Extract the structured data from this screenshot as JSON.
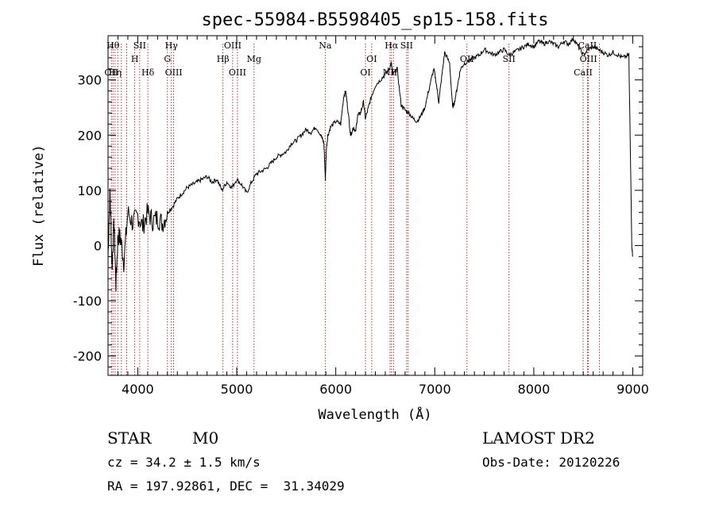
{
  "chart_data": {
    "type": "line",
    "title": "spec-55984-B5598405_sp15-158.fits",
    "xlabel": "Wavelength (Å)",
    "ylabel": "Flux (relative)",
    "xlim": [
      3700,
      9100
    ],
    "ylim": [
      -235,
      380
    ],
    "xticks": [
      4000,
      5000,
      6000,
      7000,
      8000,
      9000
    ],
    "yticks": [
      -200,
      -100,
      0,
      100,
      200,
      300
    ],
    "grid": false,
    "series": [
      {
        "x": [
          3700,
          3720,
          3740,
          3760,
          3780,
          3800,
          3830,
          3860,
          3900,
          3950,
          4000,
          4050,
          4100,
          4150,
          4200,
          4250,
          4300,
          4350,
          4400,
          4450,
          4500,
          4550,
          4600,
          4650,
          4700,
          4750,
          4800,
          4850,
          4900,
          4950,
          5000,
          5050,
          5100,
          5150,
          5200,
          5250,
          5300,
          5350,
          5400,
          5450,
          5500,
          5550,
          5600,
          5650,
          5700,
          5750,
          5800,
          5850,
          5880,
          5895,
          5905,
          5920,
          5950,
          6000,
          6050,
          6080,
          6100,
          6120,
          6150,
          6180,
          6200,
          6220,
          6250,
          6280,
          6300,
          6330,
          6360,
          6400,
          6450,
          6500,
          6540,
          6560,
          6580,
          6620,
          6660,
          6700,
          6740,
          6780,
          6820,
          6860,
          6900,
          6950,
          6990,
          7010,
          7040,
          7070,
          7100,
          7150,
          7180,
          7200,
          7230,
          7260,
          7300,
          7350,
          7400,
          7450,
          7500,
          7550,
          7600,
          7650,
          7700,
          7750,
          7800,
          7850,
          7900,
          7950,
          8000,
          8050,
          8100,
          8150,
          8200,
          8250,
          8300,
          8350,
          8400,
          8450,
          8500,
          8550,
          8600,
          8650,
          8700,
          8750,
          8800,
          8850,
          8900,
          8960,
          8990,
          9000
        ],
        "y": [
          -20,
          100,
          -40,
          40,
          -70,
          20,
          10,
          -30,
          60,
          40,
          55,
          35,
          60,
          45,
          50,
          40,
          60,
          70,
          85,
          95,
          105,
          110,
          115,
          120,
          125,
          115,
          120,
          100,
          115,
          105,
          120,
          110,
          95,
          115,
          130,
          135,
          140,
          150,
          160,
          165,
          170,
          185,
          190,
          200,
          210,
          205,
          215,
          200,
          185,
          120,
          175,
          200,
          215,
          225,
          220,
          270,
          280,
          250,
          200,
          215,
          205,
          235,
          240,
          260,
          230,
          250,
          270,
          290,
          300,
          310,
          320,
          330,
          310,
          320,
          255,
          245,
          240,
          230,
          225,
          235,
          250,
          290,
          320,
          300,
          260,
          305,
          350,
          330,
          250,
          260,
          290,
          320,
          330,
          335,
          340,
          345,
          355,
          350,
          345,
          350,
          355,
          345,
          350,
          355,
          360,
          365,
          360,
          370,
          365,
          370,
          365,
          360,
          370,
          365,
          375,
          360,
          345,
          355,
          360,
          355,
          350,
          345,
          350,
          345,
          340,
          345,
          0,
          -20
        ]
      }
    ],
    "line_markers": [
      {
        "x": 3750,
        "label": "Hθ",
        "tier": 0
      },
      {
        "x": 3734,
        "label": "OII",
        "tier": 2
      },
      {
        "x": 3771,
        "label": "Hη",
        "tier": 2
      },
      {
        "x": 3798,
        "label": "",
        "tier": 2
      },
      {
        "x": 3835,
        "label": "",
        "tier": 2
      },
      {
        "x": 3889,
        "label": "",
        "tier": 2
      },
      {
        "x": 3970,
        "label": "H",
        "tier": 1
      },
      {
        "x": 4020,
        "label": "SII",
        "tier": 0
      },
      {
        "x": 4102,
        "label": "Hδ",
        "tier": 2
      },
      {
        "x": 4300,
        "label": "G",
        "tier": 1
      },
      {
        "x": 4340,
        "label": "Hγ",
        "tier": 0
      },
      {
        "x": 4363,
        "label": "OIII",
        "tier": 2
      },
      {
        "x": 4861,
        "label": "Hβ",
        "tier": 1
      },
      {
        "x": 4959,
        "label": "OIII",
        "tier": 0
      },
      {
        "x": 5007,
        "label": "OIII",
        "tier": 2
      },
      {
        "x": 5175,
        "label": "Mg",
        "tier": 1
      },
      {
        "x": 5893,
        "label": "Na",
        "tier": 0
      },
      {
        "x": 6300,
        "label": "OI",
        "tier": 2
      },
      {
        "x": 6363,
        "label": "OI",
        "tier": 1
      },
      {
        "x": 6548,
        "label": "NII",
        "tier": 2
      },
      {
        "x": 6563,
        "label": "Hα",
        "tier": 0
      },
      {
        "x": 6583,
        "label": "",
        "tier": 2
      },
      {
        "x": 6716,
        "label": "SII",
        "tier": 0
      },
      {
        "x": 6731,
        "label": "",
        "tier": 0
      },
      {
        "x": 7325,
        "label": "OII",
        "tier": 1
      },
      {
        "x": 7750,
        "label": "SII",
        "tier": 1
      },
      {
        "x": 8498,
        "label": "CaII",
        "tier": 2
      },
      {
        "x": 8542,
        "label": "CaII",
        "tier": 0
      },
      {
        "x": 8552,
        "label": "OIII",
        "tier": 1
      },
      {
        "x": 8662,
        "label": "",
        "tier": 0
      }
    ]
  },
  "info": {
    "class": "STAR",
    "subclass": "M0",
    "survey": "LAMOST DR2",
    "cz": "cz = 34.2 ± 1.5 km/s",
    "obs_date": "Obs-Date: 20120226",
    "coords": "RA = 197.92861, DEC =  31.34029"
  }
}
